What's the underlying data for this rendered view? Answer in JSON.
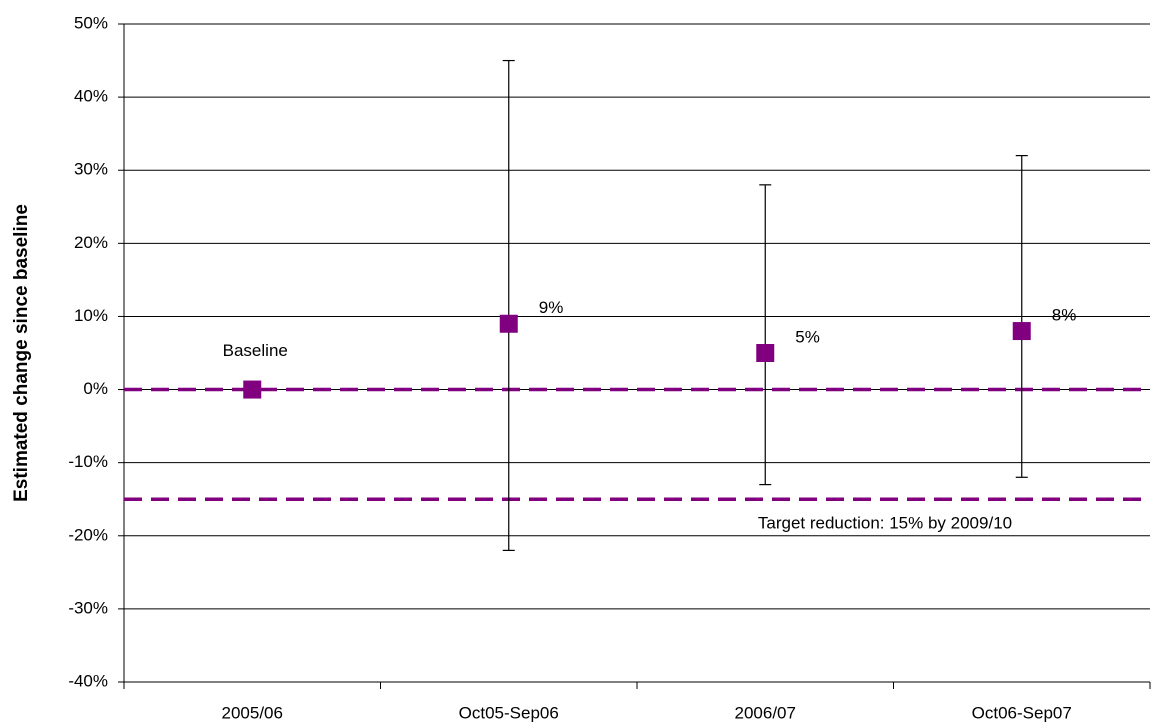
{
  "chart_data": {
    "type": "errorbar",
    "y_label": "Estimated change since baseline",
    "categories": [
      "2005/06",
      "Oct05-Sep06",
      "2006/07",
      "Oct06-Sep07"
    ],
    "values": [
      0,
      9,
      5,
      8
    ],
    "value_labels": [
      null,
      "9%",
      "5%",
      "8%"
    ],
    "upper": [
      null,
      45,
      28,
      32
    ],
    "lower": [
      null,
      -22,
      -13,
      -12
    ],
    "color": "#800080",
    "annotations": [
      {
        "text": "Baseline",
        "category": 0
      }
    ],
    "reference_lines": [
      {
        "value": 0,
        "color": "#800080",
        "style": "dashed"
      },
      {
        "value": -15,
        "color": "#800080",
        "style": "dashed",
        "label": "Target reduction: 15% by 2009/10"
      }
    ],
    "ylim": [
      -40,
      50
    ],
    "yticks": [
      {
        "value": -40,
        "label": "-40%"
      },
      {
        "value": -30,
        "label": "-30%"
      },
      {
        "value": -20,
        "label": "-20%"
      },
      {
        "value": -10,
        "label": "-10%"
      },
      {
        "value": 0,
        "label": "0%"
      },
      {
        "value": 10,
        "label": "10%"
      },
      {
        "value": 20,
        "label": "20%"
      },
      {
        "value": 30,
        "label": "30%"
      },
      {
        "value": 40,
        "label": "40%"
      },
      {
        "value": 50,
        "label": "50%"
      }
    ],
    "grid": true
  }
}
